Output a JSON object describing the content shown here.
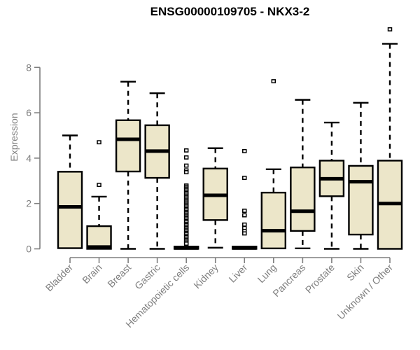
{
  "figure": {
    "title": "ENSG00000109705 - NKX3-2",
    "ylabel": "Expression"
  },
  "colors": {
    "box_fill": "#ece6c9",
    "box_stroke": "#000000",
    "median": "#000000",
    "whisker": "#000000",
    "outlier_stroke": "#000000",
    "outlier_fill": "#ffffff",
    "axis": "#7f7f7f",
    "tick_text": "#7f7f7f",
    "title_text": "#000000"
  },
  "chart_data": {
    "type": "boxplot",
    "title": "ENSG00000109705 - NKX3-2",
    "xlabel": "",
    "ylabel": "Expression",
    "yticks": [
      0,
      2,
      4,
      6,
      8
    ],
    "ylim": [
      0,
      9.9
    ],
    "grid": false,
    "legend": false,
    "categories": [
      "Bladder",
      "Brain",
      "Breast",
      "Gastric",
      "Hematopoietic cells",
      "Kidney",
      "Liver",
      "Lung",
      "Pancreas",
      "Prostate",
      "Skin",
      "Unknown / Other"
    ],
    "series": [
      {
        "category": "Bladder",
        "low": 0.03,
        "q1": 0.03,
        "median": 1.85,
        "q3": 3.4,
        "high": 5.0,
        "outliers": []
      },
      {
        "category": "Brain",
        "low": 0.0,
        "q1": 0.0,
        "median": 0.08,
        "q3": 1.0,
        "high": 2.3,
        "outliers": [
          4.7,
          2.82
        ]
      },
      {
        "category": "Breast",
        "low": 0.0,
        "q1": 3.41,
        "median": 4.83,
        "q3": 5.67,
        "high": 7.37,
        "outliers": []
      },
      {
        "category": "Gastric",
        "low": 0.0,
        "q1": 3.13,
        "median": 4.31,
        "q3": 5.45,
        "high": 6.86,
        "outliers": []
      },
      {
        "category": "Hematopoietic cells",
        "low": 0.0,
        "q1": 0.0,
        "median": 0.04,
        "q3": 0.1,
        "high": 0.1,
        "outliers": [
          4.34,
          4.03,
          3.67,
          3.46,
          3.38,
          2.79,
          2.73,
          2.66,
          2.6,
          2.53,
          2.47,
          2.4,
          2.34,
          2.27,
          2.21,
          2.14,
          2.08,
          2.01,
          1.95,
          1.88,
          1.82,
          1.75,
          1.69,
          1.62,
          1.56,
          1.49,
          1.43,
          1.36,
          1.3,
          1.23,
          1.17,
          1.1,
          1.04,
          0.97,
          0.91,
          0.84,
          0.78,
          0.71,
          0.65,
          0.58,
          0.52,
          0.45,
          0.39,
          0.32,
          0.25,
          0.23
        ]
      },
      {
        "category": "Kidney",
        "low": 0.05,
        "q1": 1.27,
        "median": 2.36,
        "q3": 3.54,
        "high": 4.44,
        "outliers": []
      },
      {
        "category": "Liver",
        "low": 0.0,
        "q1": 0.0,
        "median": 0.04,
        "q3": 0.1,
        "high": 0.1,
        "outliers": [
          4.31,
          3.13,
          1.68,
          1.48,
          1.07,
          0.92,
          0.79,
          0.68
        ]
      },
      {
        "category": "Lung",
        "low": 0.02,
        "q1": 0.02,
        "median": 0.8,
        "q3": 2.48,
        "high": 3.51,
        "outliers": [
          7.39
        ]
      },
      {
        "category": "Pancreas",
        "low": 0.02,
        "q1": 0.79,
        "median": 1.66,
        "q3": 3.59,
        "high": 6.57,
        "outliers": []
      },
      {
        "category": "Prostate",
        "low": 0.0,
        "q1": 2.32,
        "median": 3.09,
        "q3": 3.89,
        "high": 5.57,
        "outliers": []
      },
      {
        "category": "Skin",
        "low": 0.0,
        "q1": 0.63,
        "median": 2.96,
        "q3": 3.66,
        "high": 6.44,
        "outliers": []
      },
      {
        "category": "Unknown / Other",
        "low": 0.0,
        "q1": 0.0,
        "median": 2.0,
        "q3": 3.89,
        "high": 9.04,
        "outliers": [
          9.68
        ]
      }
    ]
  }
}
